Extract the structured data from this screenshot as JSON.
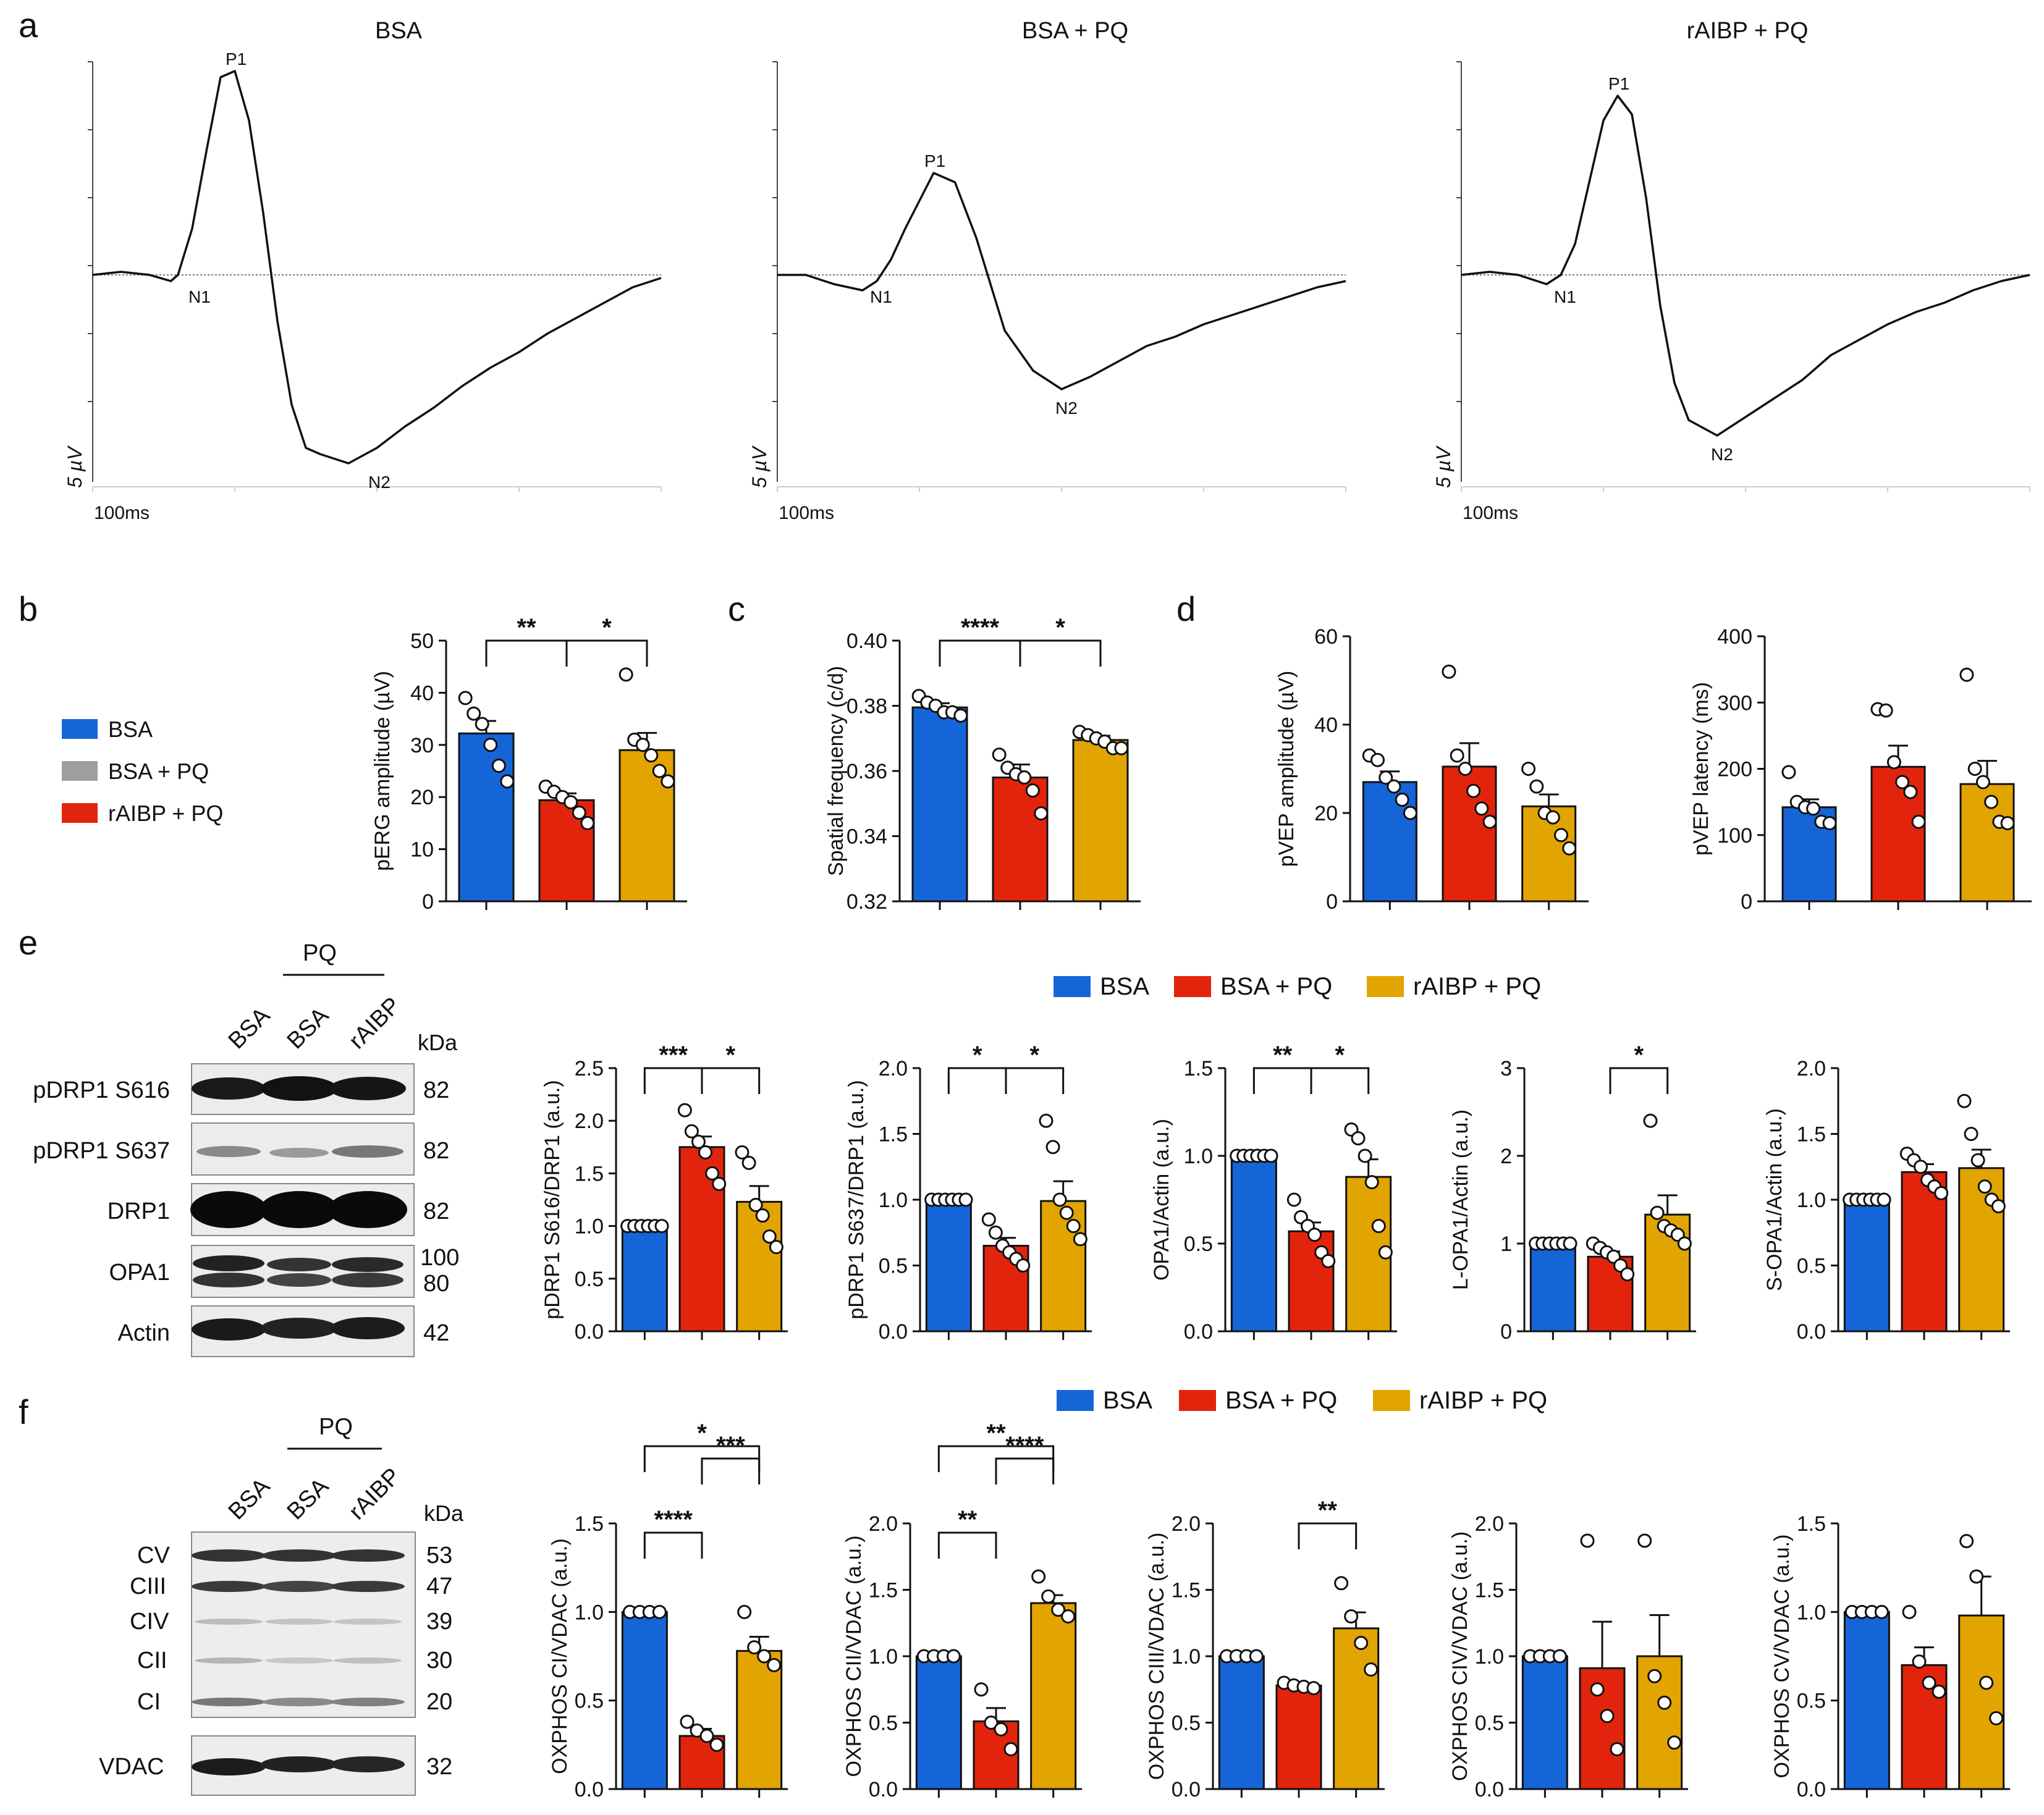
{
  "colors": {
    "BSA": "#1565d8",
    "BSA + PQ": "#e3240c",
    "rAIBP + PQ": "#e2a400",
    "legend_gray": "#9e9e9e"
  },
  "panel_letters": {
    "a": "a",
    "b": "b",
    "c": "c",
    "d": "d",
    "e": "e",
    "f": "f"
  },
  "legends": {
    "b": [
      "BSA",
      "BSA + PQ",
      "rAIBP + PQ"
    ],
    "e": [
      "BSA",
      "BSA + PQ",
      "rAIBP + PQ"
    ],
    "f": [
      "BSA",
      "BSA + PQ",
      "rAIBP + PQ"
    ]
  },
  "blot_e": {
    "group_label": "PQ",
    "lanes": [
      "BSA",
      "BSA",
      "rAIBP"
    ],
    "kda_label": "kDa",
    "rows": [
      {
        "label": "pDRP1 S616",
        "kda": [
          "82"
        ]
      },
      {
        "label": "pDRP1 S637",
        "kda": [
          "82"
        ]
      },
      {
        "label": "DRP1",
        "kda": [
          "82"
        ]
      },
      {
        "label": "OPA1",
        "kda": [
          "100",
          "80"
        ]
      },
      {
        "label": "Actin",
        "kda": [
          "42"
        ]
      }
    ]
  },
  "blot_f": {
    "group_label": "PQ",
    "lanes": [
      "BSA",
      "BSA",
      "rAIBP"
    ],
    "kda_label": "kDa",
    "bands": [
      {
        "label": "CV",
        "kda": "53"
      },
      {
        "label": "CIII",
        "kda": "47"
      },
      {
        "label": "CIV",
        "kda": "39"
      },
      {
        "label": "CII",
        "kda": "30"
      },
      {
        "label": "CI",
        "kda": "20"
      }
    ],
    "loading": {
      "label": "VDAC",
      "kda": "32"
    }
  },
  "chart_data": [
    {
      "panel": "a",
      "type": "line",
      "traces": [
        {
          "title": "BSA",
          "peaks": {
            "P1": "P1",
            "N1": "N1",
            "N2": "N2"
          },
          "scale_y": "5 µV",
          "scale_x": "100ms",
          "x": [
            0,
            20,
            40,
            55,
            60,
            70,
            80,
            90,
            100,
            110,
            120,
            130,
            140,
            150,
            160,
            180,
            200,
            220,
            240,
            260,
            280,
            300,
            320,
            340,
            360,
            380,
            400
          ],
          "y": [
            0,
            0.1,
            0,
            -0.2,
            0,
            1.5,
            4.0,
            6.4,
            6.6,
            5.0,
            2.0,
            -1.5,
            -4.2,
            -5.6,
            -5.8,
            -6.1,
            -5.6,
            -4.9,
            -4.3,
            -3.6,
            -3.0,
            -2.5,
            -1.9,
            -1.4,
            -0.9,
            -0.4,
            -0.1
          ]
        },
        {
          "title": "BSA + PQ",
          "peaks": {
            "P1": "P1",
            "N1": "N1",
            "N2": "N2"
          },
          "scale_y": "5 µV",
          "scale_x": "100ms",
          "x": [
            0,
            20,
            40,
            60,
            70,
            80,
            90,
            110,
            125,
            140,
            160,
            180,
            200,
            220,
            240,
            260,
            280,
            300,
            320,
            340,
            360,
            380,
            400
          ],
          "y": [
            0,
            0,
            -0.3,
            -0.5,
            -0.2,
            0.5,
            1.5,
            3.3,
            3.0,
            1.2,
            -1.8,
            -3.1,
            -3.7,
            -3.3,
            -2.8,
            -2.3,
            -2.0,
            -1.6,
            -1.3,
            -1.0,
            -0.7,
            -0.4,
            -0.2
          ]
        },
        {
          "title": "rAIBP + PQ",
          "peaks": {
            "P1": "P1",
            "N1": "N1",
            "N2": "N2"
          },
          "scale_y": "5 µV",
          "scale_x": "100ms",
          "x": [
            0,
            20,
            40,
            60,
            70,
            80,
            90,
            100,
            110,
            120,
            130,
            140,
            150,
            160,
            180,
            200,
            220,
            240,
            260,
            280,
            300,
            320,
            340,
            360,
            380,
            400
          ],
          "y": [
            0,
            0.1,
            0,
            -0.3,
            0,
            1.0,
            3.0,
            5.0,
            5.8,
            5.2,
            2.5,
            -1.0,
            -3.5,
            -4.7,
            -5.2,
            -4.6,
            -4.0,
            -3.4,
            -2.6,
            -2.1,
            -1.6,
            -1.2,
            -0.9,
            -0.5,
            -0.2,
            0
          ]
        }
      ]
    },
    {
      "panel": "b",
      "type": "bar",
      "ylabel": "pERG amplitude (µV)",
      "ylim": [
        0,
        50
      ],
      "yticks": [
        0,
        10,
        20,
        30,
        40,
        50
      ],
      "categories": [
        "BSA",
        "BSA + PQ",
        "rAIBP + PQ"
      ],
      "values": [
        32.2,
        19.4,
        29.0
      ],
      "sem": [
        2.4,
        1.3,
        3.3
      ],
      "points": [
        [
          39,
          36,
          34,
          30,
          26,
          23
        ],
        [
          22,
          21,
          20,
          19,
          17,
          15
        ],
        [
          43.5,
          31,
          30,
          28,
          25,
          23
        ]
      ],
      "sig": [
        {
          "from": 0,
          "to": 1,
          "label": "**"
        },
        {
          "from": 1,
          "to": 2,
          "label": "*"
        }
      ]
    },
    {
      "panel": "c",
      "type": "bar",
      "ylabel": "Spatial frequency (c/d)",
      "ylim": [
        0.32,
        0.4
      ],
      "yticks": [
        "0.32",
        "0.34",
        "0.36",
        "0.38",
        "0.40"
      ],
      "categories": [
        "BSA",
        "BSA + PQ",
        "rAIBP + PQ"
      ],
      "values": [
        0.3795,
        0.358,
        0.3695
      ],
      "sem": [
        0.0013,
        0.004,
        0.0013
      ],
      "points": [
        [
          0.383,
          0.381,
          0.38,
          0.378,
          0.378,
          0.377
        ],
        [
          0.365,
          0.361,
          0.359,
          0.358,
          0.354,
          0.347
        ],
        [
          0.372,
          0.371,
          0.37,
          0.369,
          0.367,
          0.367
        ]
      ],
      "sig": [
        {
          "from": 0,
          "to": 1,
          "label": "****"
        },
        {
          "from": 1,
          "to": 2,
          "label": "*"
        }
      ]
    },
    {
      "panel": "d1",
      "type": "bar",
      "ylabel": "pVEP amplitude (µV)",
      "ylim": [
        0,
        60
      ],
      "yticks": [
        0,
        20,
        40,
        60
      ],
      "categories": [
        "BSA",
        "BSA + PQ",
        "rAIBP + PQ"
      ],
      "values": [
        27,
        30.5,
        21.5
      ],
      "sem": [
        2.4,
        5.3,
        2.7
      ],
      "points": [
        [
          33,
          32,
          28,
          26,
          23,
          20
        ],
        [
          52,
          33,
          30,
          25,
          21,
          18
        ],
        [
          30,
          26,
          20,
          19,
          15,
          12
        ]
      ],
      "sig": []
    },
    {
      "panel": "d2",
      "type": "bar",
      "ylabel": "pVEP latency (ms)",
      "ylim": [
        0,
        400
      ],
      "yticks": [
        0,
        100,
        200,
        300,
        400
      ],
      "categories": [
        "BSA",
        "BSA + PQ",
        "rAIBP + PQ"
      ],
      "values": [
        142,
        203,
        177
      ],
      "sem": [
        12,
        32,
        35
      ],
      "points": [
        [
          195,
          150,
          142,
          140,
          120,
          118
        ],
        [
          290,
          288,
          210,
          180,
          165,
          120
        ],
        [
          342,
          200,
          180,
          150,
          120,
          118
        ]
      ],
      "sig": []
    },
    {
      "panel": "e1",
      "type": "bar",
      "ylabel": "pDRP1 S616/DRP1 (a.u.)",
      "ylim": [
        0,
        2.5
      ],
      "yticks": [
        "0.0",
        "0.5",
        "1.0",
        "1.5",
        "2.0",
        "2.5"
      ],
      "categories": [
        "BSA",
        "BSA + PQ",
        "rAIBP + PQ"
      ],
      "values": [
        1.0,
        1.75,
        1.23
      ],
      "sem": [
        0.005,
        0.1,
        0.15
      ],
      "points": [
        [
          1,
          1,
          1,
          1,
          1,
          1
        ],
        [
          2.1,
          1.9,
          1.8,
          1.7,
          1.5,
          1.4
        ],
        [
          1.7,
          1.6,
          1.2,
          1.1,
          0.9,
          0.8
        ]
      ],
      "sig": [
        {
          "from": 0,
          "to": 1,
          "label": "***"
        },
        {
          "from": 1,
          "to": 2,
          "label": "*"
        }
      ]
    },
    {
      "panel": "e2",
      "type": "bar",
      "ylabel": "pDRP1 S637/DRP1 (a.u.)",
      "ylim": [
        0,
        2.0
      ],
      "yticks": [
        "0.0",
        "0.5",
        "1.0",
        "1.5",
        "2.0"
      ],
      "categories": [
        "BSA",
        "BSA + PQ",
        "rAIBP + PQ"
      ],
      "values": [
        1.0,
        0.65,
        0.99
      ],
      "sem": [
        0.005,
        0.06,
        0.15
      ],
      "points": [
        [
          1,
          1,
          1,
          1,
          1,
          1
        ],
        [
          0.85,
          0.75,
          0.65,
          0.6,
          0.55,
          0.5
        ],
        [
          1.6,
          1.4,
          1.0,
          0.9,
          0.8,
          0.7
        ]
      ],
      "sig": [
        {
          "from": 0,
          "to": 1,
          "label": "*"
        },
        {
          "from": 1,
          "to": 2,
          "label": "*"
        }
      ]
    },
    {
      "panel": "e3",
      "type": "bar",
      "ylabel": "OPA1/Actin (a.u.)",
      "ylim": [
        0,
        1.5
      ],
      "yticks": [
        "0.0",
        "0.5",
        "1.0",
        "1.5"
      ],
      "categories": [
        "BSA",
        "BSA + PQ",
        "rAIBP + PQ"
      ],
      "values": [
        1.0,
        0.57,
        0.88
      ],
      "sem": [
        0.005,
        0.05,
        0.1
      ],
      "points": [
        [
          1,
          1,
          1,
          1,
          1,
          1
        ],
        [
          0.75,
          0.65,
          0.6,
          0.55,
          0.45,
          0.4
        ],
        [
          1.15,
          1.1,
          1.0,
          0.85,
          0.6,
          0.45
        ]
      ],
      "sig": [
        {
          "from": 0,
          "to": 1,
          "label": "**"
        },
        {
          "from": 1,
          "to": 2,
          "label": "*"
        }
      ]
    },
    {
      "panel": "e4",
      "type": "bar",
      "ylabel": "L-OPA1/Actin (a.u.)",
      "ylim": [
        0,
        3
      ],
      "yticks": [
        "0",
        "1",
        "2",
        "3"
      ],
      "categories": [
        "BSA",
        "BSA + PQ",
        "rAIBP + PQ"
      ],
      "values": [
        1.0,
        0.85,
        1.33
      ],
      "sem": [
        0.005,
        0.06,
        0.22
      ],
      "points": [
        [
          1,
          1,
          1,
          1,
          1,
          1
        ],
        [
          1.0,
          0.95,
          0.9,
          0.85,
          0.75,
          0.65
        ],
        [
          2.4,
          1.35,
          1.2,
          1.15,
          1.1,
          1.0
        ]
      ],
      "sig": [
        {
          "from": 1,
          "to": 2,
          "label": "*"
        }
      ]
    },
    {
      "panel": "e5",
      "type": "bar",
      "ylabel": "S-OPA1/Actin (a.u.)",
      "ylim": [
        0,
        2.0
      ],
      "yticks": [
        "0.0",
        "0.5",
        "1.0",
        "1.5",
        "2.0"
      ],
      "categories": [
        "BSA",
        "BSA + PQ",
        "rAIBP + PQ"
      ],
      "values": [
        1.0,
        1.21,
        1.24
      ],
      "sem": [
        0.005,
        0.06,
        0.14
      ],
      "points": [
        [
          1,
          1,
          1,
          1,
          1,
          1
        ],
        [
          1.35,
          1.3,
          1.25,
          1.15,
          1.1,
          1.05
        ],
        [
          1.75,
          1.5,
          1.3,
          1.1,
          1.0,
          0.95
        ]
      ],
      "sig": []
    },
    {
      "panel": "f1",
      "type": "bar",
      "ylabel": "OXPHOS CI/VDAC (a.u.)",
      "ylim": [
        0,
        1.5
      ],
      "yticks": [
        "0.0",
        "0.5",
        "1.0",
        "1.5"
      ],
      "categories": [
        "BSA",
        "BSA + PQ",
        "rAIBP + PQ"
      ],
      "values": [
        1.0,
        0.3,
        0.78
      ],
      "sem": [
        0.005,
        0.04,
        0.08
      ],
      "points": [
        [
          1,
          1,
          1,
          1
        ],
        [
          0.38,
          0.33,
          0.3,
          0.25
        ],
        [
          1.0,
          0.8,
          0.75,
          0.7
        ]
      ],
      "sig": [
        {
          "from": 0,
          "to": 1,
          "label": "****"
        },
        {
          "from": 1,
          "to": 2,
          "label": "***"
        },
        {
          "from": 0,
          "to": 2,
          "label": "*"
        }
      ]
    },
    {
      "panel": "f2",
      "type": "bar",
      "ylabel": "OXPHOS CII/VDAC (a.u.)",
      "ylim": [
        0,
        2.0
      ],
      "yticks": [
        "0.0",
        "0.5",
        "1.0",
        "1.5",
        "2.0"
      ],
      "categories": [
        "BSA",
        "BSA + PQ",
        "rAIBP + PQ"
      ],
      "values": [
        1.0,
        0.51,
        1.4
      ],
      "sem": [
        0.005,
        0.1,
        0.06
      ],
      "points": [
        [
          1,
          1,
          1,
          1
        ],
        [
          0.75,
          0.5,
          0.45,
          0.3
        ],
        [
          1.6,
          1.45,
          1.35,
          1.3
        ]
      ],
      "sig": [
        {
          "from": 0,
          "to": 1,
          "label": "**"
        },
        {
          "from": 1,
          "to": 2,
          "label": "****"
        },
        {
          "from": 0,
          "to": 2,
          "label": "**"
        }
      ]
    },
    {
      "panel": "f3",
      "type": "bar",
      "ylabel": "OXPHOS CIII/VDAC (a.u.)",
      "ylim": [
        0,
        2.0
      ],
      "yticks": [
        "0.0",
        "0.5",
        "1.0",
        "1.5",
        "2.0"
      ],
      "categories": [
        "BSA",
        "BSA + PQ",
        "rAIBP + PQ"
      ],
      "values": [
        1.0,
        0.78,
        1.21
      ],
      "sem": [
        0.005,
        0.02,
        0.12
      ],
      "points": [
        [
          1,
          1,
          1,
          1
        ],
        [
          0.8,
          0.78,
          0.77,
          0.76
        ],
        [
          1.55,
          1.3,
          1.1,
          0.9
        ]
      ],
      "sig": [
        {
          "from": 1,
          "to": 2,
          "label": "**"
        }
      ]
    },
    {
      "panel": "f4",
      "type": "bar",
      "ylabel": "OXPHOS CIV/VDAC (a.u.)",
      "ylim": [
        0,
        2.0
      ],
      "yticks": [
        "0.0",
        "0.5",
        "1.0",
        "1.5",
        "2.0"
      ],
      "categories": [
        "BSA",
        "BSA + PQ",
        "rAIBP + PQ"
      ],
      "values": [
        1.0,
        0.91,
        1.0
      ],
      "sem": [
        0.005,
        0.35,
        0.31
      ],
      "points": [
        [
          1,
          1,
          1,
          1
        ],
        [
          1.87,
          0.75,
          0.55,
          0.3
        ],
        [
          1.87,
          0.85,
          0.65,
          0.35
        ]
      ],
      "sig": []
    },
    {
      "panel": "f5",
      "type": "bar",
      "ylabel": "OXPHOS CV/VDAC (a.u.)",
      "ylim": [
        0,
        1.5
      ],
      "yticks": [
        "0.0",
        "0.5",
        "1.0",
        "1.5"
      ],
      "categories": [
        "BSA",
        "BSA + PQ",
        "rAIBP + PQ"
      ],
      "values": [
        1.0,
        0.7,
        0.98
      ],
      "sem": [
        0.005,
        0.1,
        0.22
      ],
      "points": [
        [
          1,
          1,
          1,
          1
        ],
        [
          1.0,
          0.72,
          0.6,
          0.55
        ],
        [
          1.4,
          1.2,
          0.6,
          0.4
        ]
      ],
      "sig": []
    }
  ]
}
